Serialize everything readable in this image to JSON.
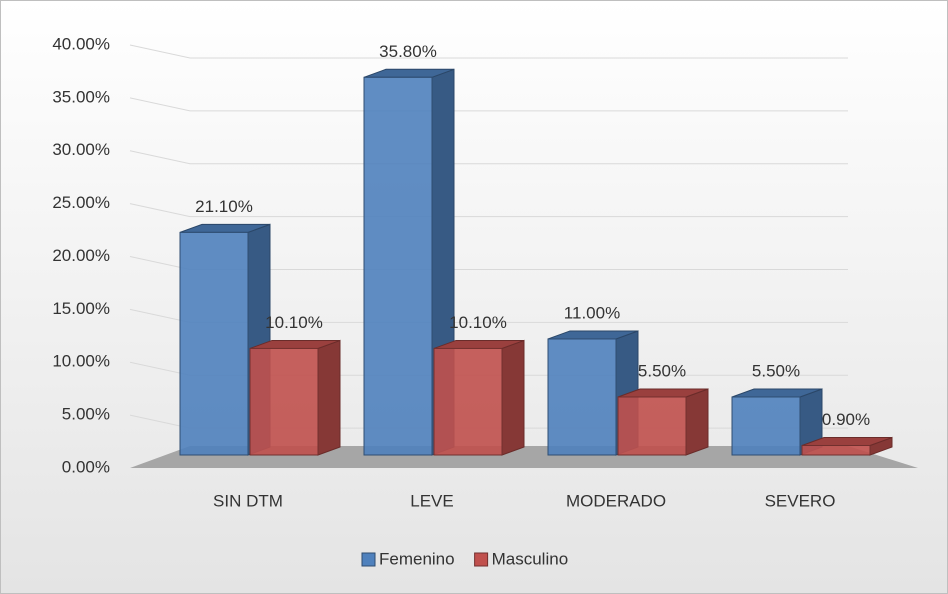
{
  "chart_data": {
    "type": "bar3d",
    "categories": [
      "SIN DTM",
      "LEVE",
      "MODERADO",
      "SEVERO"
    ],
    "series": [
      {
        "name": "Femenino",
        "color": "#4f81bd",
        "values": [
          21.1,
          35.8,
          11.0,
          5.5
        ],
        "value_labels": [
          "21.10%",
          "35.80%",
          "11.00%",
          "5.50%"
        ]
      },
      {
        "name": "Masculino",
        "color": "#c0504d",
        "values": [
          10.1,
          10.1,
          5.5,
          0.9
        ],
        "value_labels": [
          "10.10%",
          "10.10%",
          "5.50%",
          "0.90%"
        ]
      }
    ],
    "ylim": [
      0,
      40
    ],
    "yticks": [
      {
        "value": 0,
        "label": "0.00%"
      },
      {
        "value": 5,
        "label": "5.00%"
      },
      {
        "value": 10,
        "label": "10.00%"
      },
      {
        "value": 15,
        "label": "15.00%"
      },
      {
        "value": 20,
        "label": "20.00%"
      },
      {
        "value": 25,
        "label": "25.00%"
      },
      {
        "value": 30,
        "label": "30.00%"
      },
      {
        "value": 35,
        "label": "35.00%"
      },
      {
        "value": 40,
        "label": "40.00%"
      }
    ],
    "grid": true,
    "legend": "bottom"
  }
}
